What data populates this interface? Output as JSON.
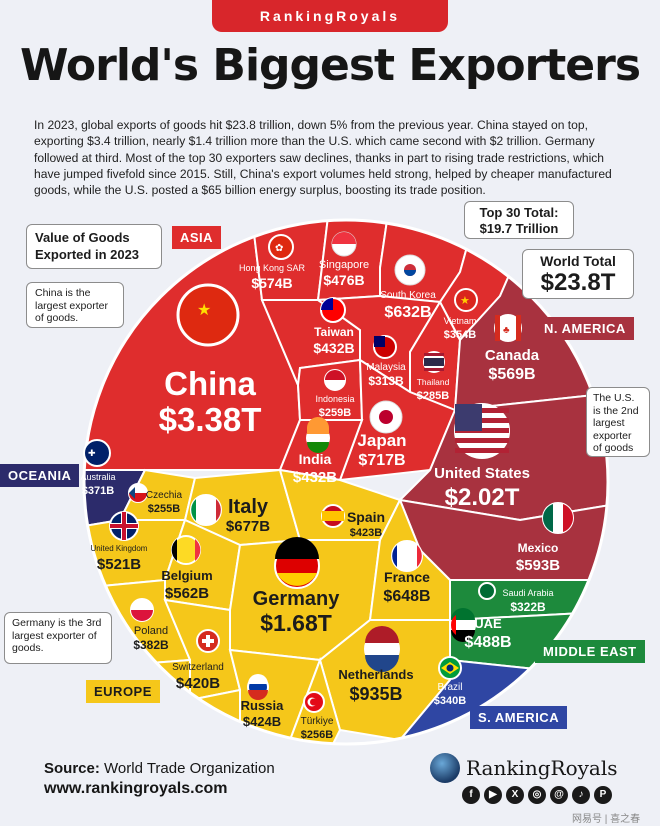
{
  "brand": "RankingRoyals",
  "title": "World's Biggest Exporters",
  "intro": "In 2023, global exports of goods hit $23.8 trillion, down 5% from the previous year. China stayed on top, exporting $3.4 trillion, nearly $1.4 trillion more than the U.S. which came second with $2 trillion. Germany followed at third. Most of the top 30 exporters saw declines, thanks in part to rising trade restrictions, which have jumped fivefold since 2015. Still, China's export volumes held strong, helped by cheaper manufactured goods, while the U.S. posted a $65 billion energy surplus, boosting its trade position.",
  "callouts": {
    "value_of_goods": "Value of Goods Exported in 2023",
    "top30": "Top 30 Total: $19.7 Trillion",
    "world_total_label": "World Total",
    "world_total_value": "$23.8T",
    "china_note": "China is the largest exporter of goods.",
    "us_note": "The U.S. is the 2nd largest exporter of goods",
    "germany_note": "Germany is the 3rd largest exporter of goods."
  },
  "regions": {
    "asia": "ASIA",
    "n_america": "N. AMERICA",
    "oceania": "OCEANIA",
    "middle_east": "MIDDLE EAST",
    "europe": "EUROPE",
    "s_america": "S. AMERICA"
  },
  "colors": {
    "asia": "#df2d2d",
    "n_america": "#a8323f",
    "europe": "#f5c71a",
    "middle_east": "#1d8a3c",
    "oceania": "#2c2b6b",
    "s_america": "#2f46a3",
    "brand_red": "#d8262b"
  },
  "chart_data": {
    "type": "treemap",
    "unit": "USD",
    "items": [
      {
        "country": "China",
        "value_label": "$3.38T",
        "value": 3380,
        "region": "asia"
      },
      {
        "country": "Hong Kong SAR",
        "value_label": "$574B",
        "value": 574,
        "region": "asia"
      },
      {
        "country": "Singapore",
        "value_label": "$476B",
        "value": 476,
        "region": "asia"
      },
      {
        "country": "South Korea",
        "value_label": "$632B",
        "value": 632,
        "region": "asia"
      },
      {
        "country": "Vietnam",
        "value_label": "$354B",
        "value": 354,
        "region": "asia"
      },
      {
        "country": "Taiwan",
        "value_label": "$432B",
        "value": 432,
        "region": "asia"
      },
      {
        "country": "Malaysia",
        "value_label": "$313B",
        "value": 313,
        "region": "asia"
      },
      {
        "country": "Thailand",
        "value_label": "$285B",
        "value": 285,
        "region": "asia"
      },
      {
        "country": "Indonesia",
        "value_label": "$259B",
        "value": 259,
        "region": "asia"
      },
      {
        "country": "Japan",
        "value_label": "$717B",
        "value": 717,
        "region": "asia"
      },
      {
        "country": "India",
        "value_label": "$432B",
        "value": 432,
        "region": "asia"
      },
      {
        "country": "Canada",
        "value_label": "$569B",
        "value": 569,
        "region": "n_america"
      },
      {
        "country": "United States",
        "value_label": "$2.02T",
        "value": 2020,
        "region": "n_america"
      },
      {
        "country": "Mexico",
        "value_label": "$593B",
        "value": 593,
        "region": "n_america"
      },
      {
        "country": "Australia",
        "value_label": "$371B",
        "value": 371,
        "region": "oceania"
      },
      {
        "country": "Czechia",
        "value_label": "$255B",
        "value": 255,
        "region": "europe"
      },
      {
        "country": "Italy",
        "value_label": "$677B",
        "value": 677,
        "region": "europe"
      },
      {
        "country": "Spain",
        "value_label": "$423B",
        "value": 423,
        "region": "europe"
      },
      {
        "country": "United Kingdom",
        "value_label": "$521B",
        "value": 521,
        "region": "europe"
      },
      {
        "country": "Belgium",
        "value_label": "$562B",
        "value": 562,
        "region": "europe"
      },
      {
        "country": "Germany",
        "value_label": "$1.68T",
        "value": 1680,
        "region": "europe"
      },
      {
        "country": "France",
        "value_label": "$648B",
        "value": 648,
        "region": "europe"
      },
      {
        "country": "Poland",
        "value_label": "$382B",
        "value": 382,
        "region": "europe"
      },
      {
        "country": "Switzerland",
        "value_label": "$420B",
        "value": 420,
        "region": "europe"
      },
      {
        "country": "Netherlands",
        "value_label": "$935B",
        "value": 935,
        "region": "europe"
      },
      {
        "country": "Russia",
        "value_label": "$424B",
        "value": 424,
        "region": "europe"
      },
      {
        "country": "Türkiye",
        "value_label": "$256B",
        "value": 256,
        "region": "europe"
      },
      {
        "country": "Saudi Arabia",
        "value_label": "$322B",
        "value": 322,
        "region": "middle_east"
      },
      {
        "country": "UAE",
        "value_label": "$488B",
        "value": 488,
        "region": "middle_east"
      },
      {
        "country": "Brazil",
        "value_label": "$340B",
        "value": 340,
        "region": "s_america"
      }
    ]
  },
  "footer": {
    "source_label": "Source:",
    "source_value": "World Trade Organization",
    "url": "www.rankingroyals.com",
    "logo_text": "RankingRoyals",
    "socials": [
      "facebook-icon",
      "youtube-icon",
      "x-icon",
      "instagram-icon",
      "threads-icon",
      "tiktok-icon",
      "pinterest-icon"
    ],
    "watermark": "网易号 | 喜之春"
  }
}
